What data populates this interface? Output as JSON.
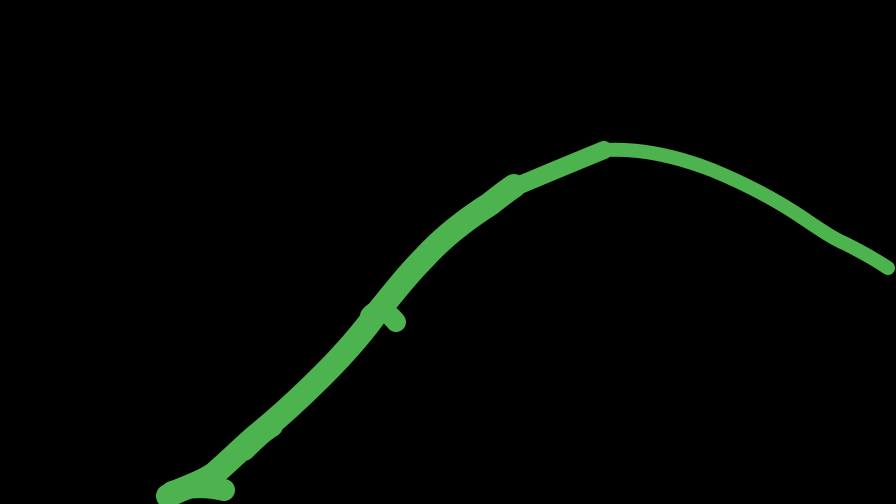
{
  "canvas": {
    "background_color": "#000000"
  },
  "stroke": {
    "color": "#4CB34F",
    "shape": "freehand-curve"
  }
}
